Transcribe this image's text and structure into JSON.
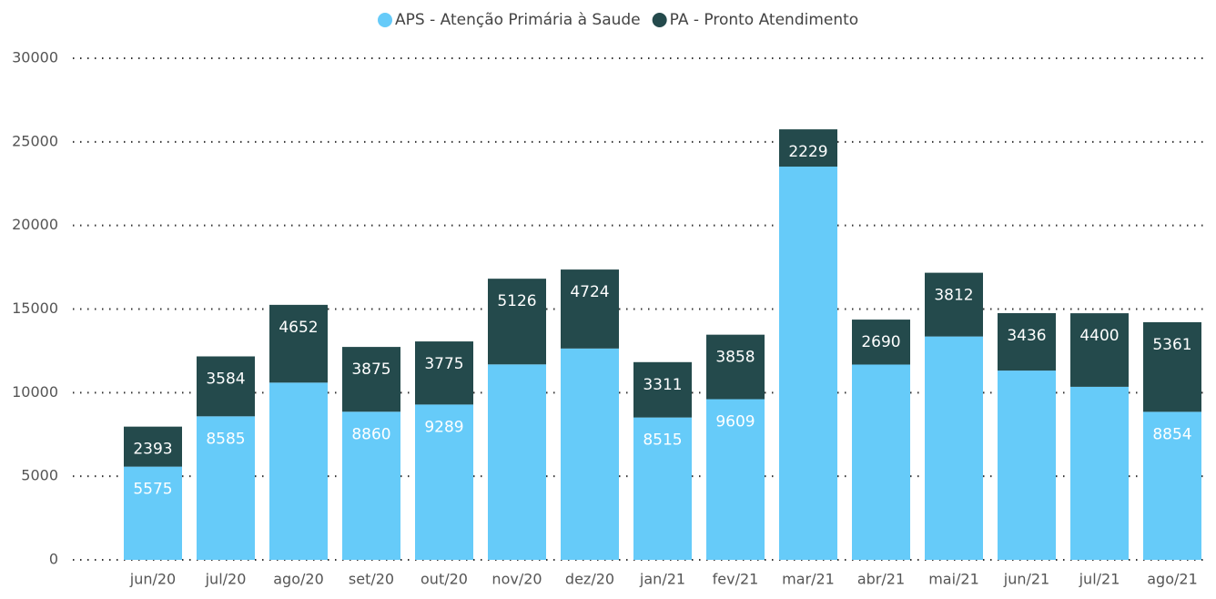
{
  "chart_data": {
    "type": "stacked_bar",
    "categories": [
      "jun/20",
      "jul/20",
      "ago/20",
      "set/20",
      "out/20",
      "nov/20",
      "dez/20",
      "jan/21",
      "fev/21",
      "mar/21",
      "abr/21",
      "mai/21",
      "jun/21",
      "jul/21",
      "ago/21"
    ],
    "series": [
      {
        "name": "APS - Atenção Primária à Saude",
        "color": "#66CBF9",
        "values": [
          5575,
          8585,
          10600,
          8860,
          9289,
          11690,
          12640,
          8515,
          9609,
          23520,
          11680,
          13360,
          11320,
          10350,
          8854
        ],
        "value_labels": [
          "5575",
          "8585",
          null,
          "8860",
          "9289",
          null,
          null,
          "8515",
          "9609",
          null,
          null,
          null,
          null,
          null,
          "8854"
        ]
      },
      {
        "name": "PA - Pronto Atendimento",
        "color": "#244A4C",
        "values": [
          2393,
          3584,
          4652,
          3875,
          3775,
          5126,
          4724,
          3311,
          3858,
          2229,
          2690,
          3812,
          3436,
          4400,
          5361
        ],
        "value_labels": [
          "2393",
          "3584",
          "4652",
          "3875",
          "3775",
          "5126",
          "4724",
          "3311",
          "3858",
          "2229",
          "2690",
          "3812",
          "3436",
          "4400",
          "5361"
        ]
      }
    ],
    "ylim": [
      0,
      30000
    ],
    "yticks": [
      0,
      5000,
      10000,
      15000,
      20000,
      25000,
      30000
    ],
    "grid": true,
    "legend": "top"
  }
}
